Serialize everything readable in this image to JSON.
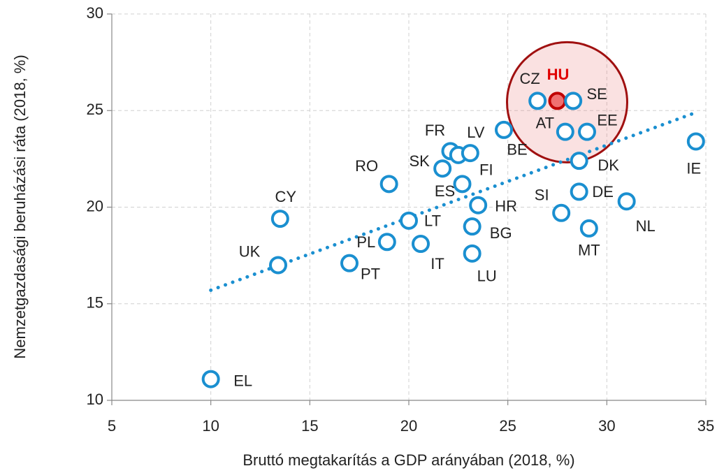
{
  "chart_data": {
    "type": "scatter",
    "xlabel": "Bruttó megtakarítás a GDP arányában (2018, %)",
    "ylabel": "Nemzetgazdasági beruházási ráta (2018, %)",
    "xlim": [
      5,
      35
    ],
    "xticks": [
      5,
      10,
      15,
      20,
      25,
      30,
      35
    ],
    "ylim": [
      10,
      30
    ],
    "yticks": [
      10,
      15,
      20,
      25,
      30
    ],
    "grid": true,
    "labels": [
      "EL",
      "UK",
      "CY",
      "PT",
      "RO",
      "PL",
      "LT",
      "IT",
      "SK",
      "FR",
      "FI",
      "LV",
      "ES",
      "HR",
      "BG",
      "LU",
      "BE",
      "CZ",
      "HU",
      "SE",
      "AT",
      "EE",
      "DK",
      "DE",
      "SI",
      "MT",
      "NL",
      "IE"
    ],
    "x": [
      10.0,
      13.4,
      13.5,
      17.0,
      19.0,
      18.9,
      20.0,
      20.6,
      21.7,
      22.1,
      22.5,
      23.1,
      22.7,
      23.5,
      23.2,
      23.2,
      24.8,
      26.5,
      27.5,
      28.3,
      27.9,
      29.0,
      28.6,
      28.6,
      27.7,
      29.1,
      31.0,
      34.5
    ],
    "y": [
      11.1,
      17.0,
      19.4,
      17.1,
      21.2,
      18.2,
      19.3,
      18.1,
      22.0,
      22.9,
      22.7,
      22.8,
      21.2,
      20.1,
      19.0,
      17.6,
      24.0,
      25.5,
      25.5,
      25.5,
      23.9,
      23.9,
      22.4,
      20.8,
      19.7,
      18.9,
      20.3,
      23.4
    ],
    "color": "#1a8fd0",
    "highlight": {
      "label": "HU",
      "color": "#e00000"
    },
    "trendline": {
      "x": [
        10,
        34.5
      ],
      "y": [
        15.7,
        24.9
      ]
    }
  }
}
